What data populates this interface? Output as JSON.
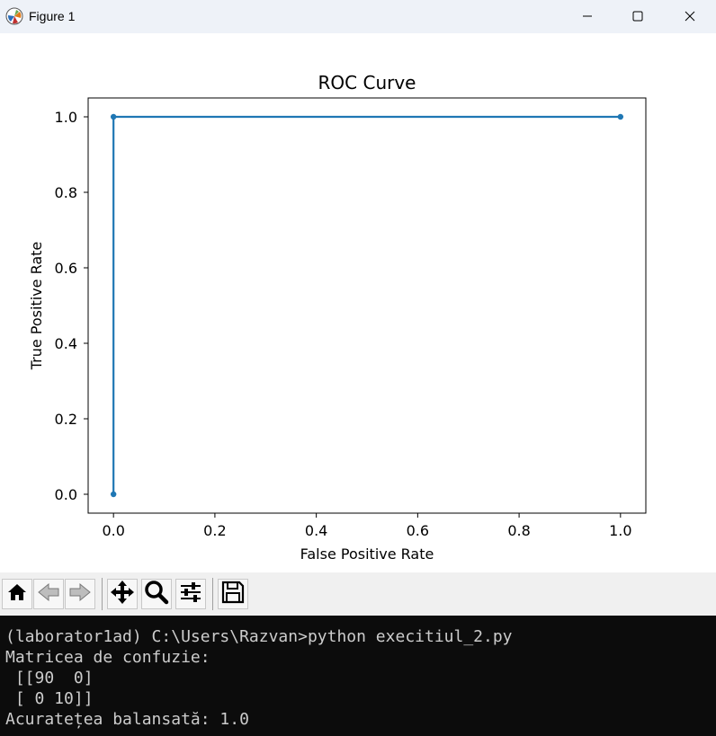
{
  "window": {
    "title": "Figure 1",
    "app_icon": "matplotlib-icon",
    "controls": [
      "minimize-icon",
      "maximize-icon",
      "close-icon"
    ]
  },
  "chart_data": {
    "type": "line",
    "title": "ROC Curve",
    "xlabel": "False Positive Rate",
    "ylabel": "True Positive Rate",
    "x": [
      0.0,
      0.0,
      1.0
    ],
    "y": [
      0.0,
      1.0,
      1.0
    ],
    "xlim": [
      -0.05,
      1.05
    ],
    "ylim": [
      -0.05,
      1.05
    ],
    "xticks": [
      "0.0",
      "0.2",
      "0.4",
      "0.6",
      "0.8",
      "1.0"
    ],
    "yticks": [
      "0.0",
      "0.2",
      "0.4",
      "0.6",
      "0.8",
      "1.0"
    ],
    "marker": "point",
    "color": "#1f77b4",
    "grid": false
  },
  "toolbar": {
    "buttons": [
      "home-icon",
      "back-icon",
      "forward-icon",
      "pan-icon",
      "zoom-icon",
      "configure-subplots-icon",
      "save-icon"
    ]
  },
  "terminal": {
    "lines": [
      "(laborator1ad) C:\\Users\\Razvan>python execitiul_2.py",
      "Matricea de confuzie:",
      " [[90  0]",
      " [ 0 10]]",
      "Acuratețea balansată: 1.0"
    ]
  }
}
